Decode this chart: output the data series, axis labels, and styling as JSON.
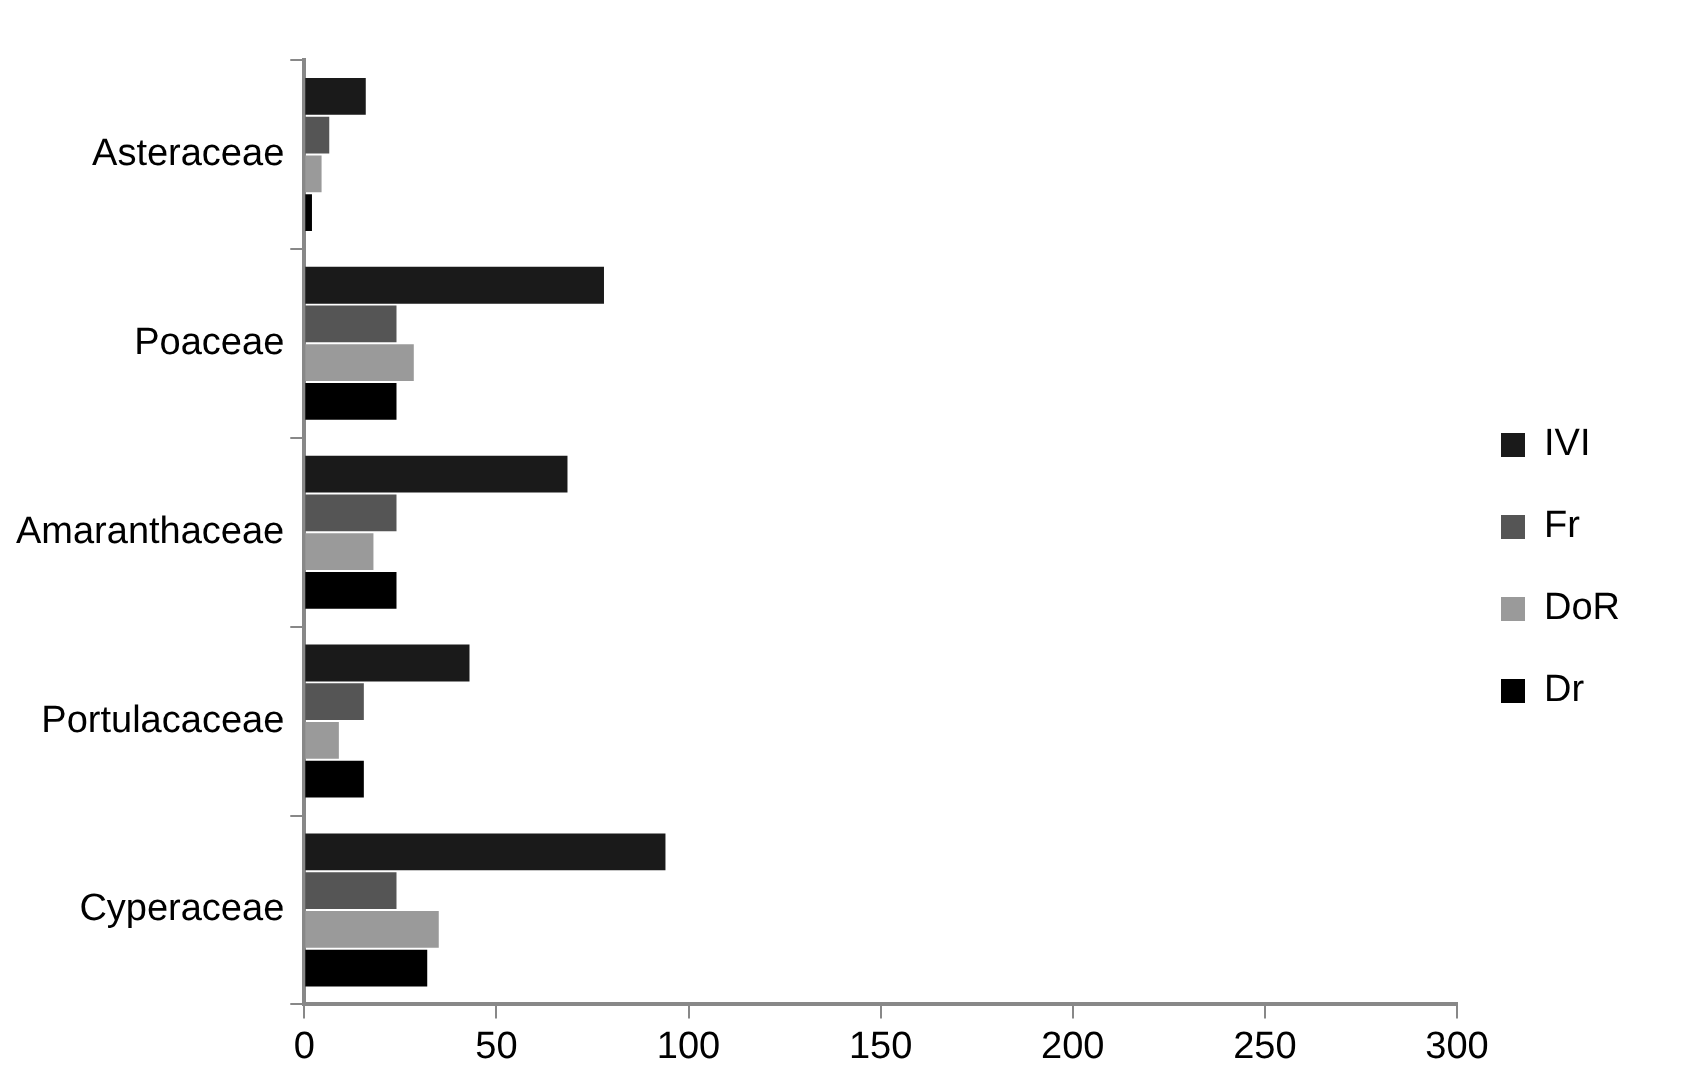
{
  "chart_data": {
    "type": "bar",
    "orientation": "horizontal",
    "categories": [
      "Asteraceae",
      "Poaceae",
      "Amaranthaceae",
      "Portulacaceae",
      "Cyperaceae"
    ],
    "series": [
      {
        "name": "IVI",
        "color": "#1a1a1a",
        "values": [
          16,
          78,
          68.5,
          43,
          94
        ]
      },
      {
        "name": "Fr",
        "color": "#555555",
        "values": [
          6.5,
          24,
          24,
          15.5,
          24
        ]
      },
      {
        "name": "DoR",
        "color": "#9a9a9a",
        "values": [
          4.5,
          28.5,
          18,
          9,
          35
        ]
      },
      {
        "name": "Dr",
        "color": "#000000",
        "values": [
          2,
          24,
          24,
          15.5,
          32
        ]
      }
    ],
    "xlim": [
      0,
      300
    ],
    "xticks": [
      0,
      50,
      100,
      150,
      200,
      250,
      300
    ],
    "grid": false,
    "legend": "right"
  }
}
